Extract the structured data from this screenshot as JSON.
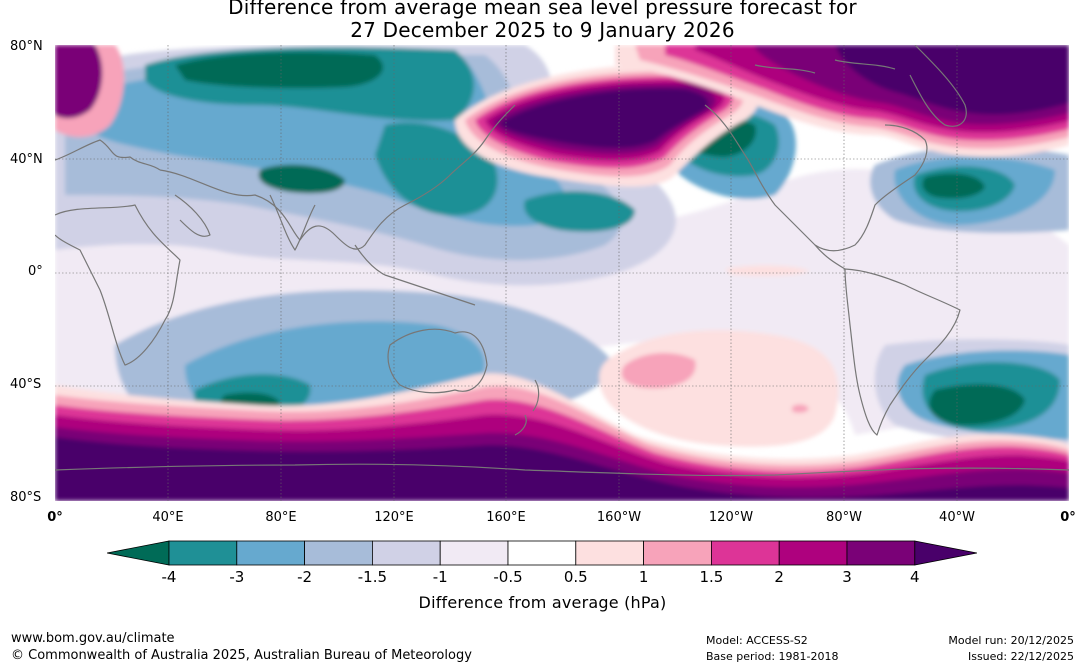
{
  "title": {
    "line1": "Difference from average mean sea level pressure forecast for",
    "line2": "27 December 2025 to 9 January 2026"
  },
  "axes": {
    "lat_labels": [
      "80°N",
      "40°N",
      "0°",
      "40°S",
      "80°S"
    ],
    "lon_labels": [
      "0°",
      "40°E",
      "80°E",
      "120°E",
      "160°E",
      "160°W",
      "120°W",
      "80°W",
      "40°W",
      "0°"
    ]
  },
  "colorbar": {
    "ticks": [
      "-4",
      "-3",
      "-2",
      "-1.5",
      "-1",
      "-0.5",
      "0.5",
      "1",
      "1.5",
      "2",
      "3",
      "4"
    ],
    "label": "Difference from average (hPa)",
    "colors": [
      "#006b57",
      "#1f9096",
      "#66a9cf",
      "#a7bcd9",
      "#d0d1e6",
      "#f1eaf4",
      "#ffffff",
      "#fde0e0",
      "#f7a3ba",
      "#dd3497",
      "#ae017e",
      "#7a0177",
      "#49006a"
    ]
  },
  "map_regions": [
    {
      "name": "east-pacific-aleutian-high",
      "value": "> 4",
      "color": "#49006a"
    },
    {
      "name": "southern-ocean-high-belt",
      "value": "> 4",
      "color": "#49006a"
    },
    {
      "name": "arctic-greenland-high",
      "value": "> 4",
      "color": "#49006a"
    },
    {
      "name": "siberia-low",
      "value": "< -4",
      "color": "#006b57"
    },
    {
      "name": "south-indian-ocean-low",
      "value": "< -4",
      "color": "#006b57"
    },
    {
      "name": "south-atlantic-low",
      "value": "< -4",
      "color": "#006b57"
    },
    {
      "name": "north-atlantic-low",
      "value": "< -4",
      "color": "#006b57"
    },
    {
      "name": "west-canada-low",
      "value": "< -4",
      "color": "#006b57"
    },
    {
      "name": "south-pacific-positive",
      "value": "1 to 1.5",
      "color": "#f7a3ba"
    }
  ],
  "footer": {
    "website": "www.bom.gov.au/climate",
    "copyright": "© Commonwealth of Australia 2025, Australian Bureau of Meteorology",
    "model": "Model: ACCESS-S2",
    "base_period": "Base period: 1981-2018",
    "model_run": "Model run: 20/12/2025",
    "issued": "Issued: 22/12/2025"
  }
}
